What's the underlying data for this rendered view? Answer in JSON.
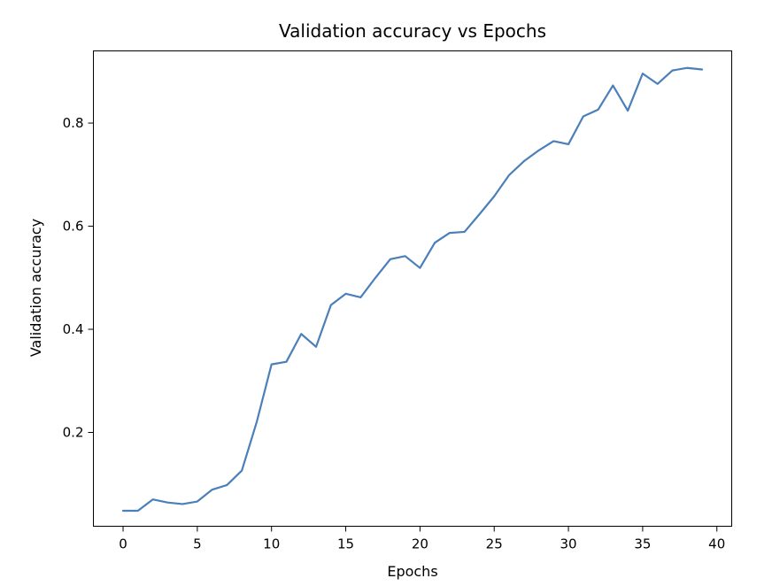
{
  "chart_data": {
    "type": "line",
    "title": "Validation accuracy vs Epochs",
    "xlabel": "Epochs",
    "ylabel": "Validation accuracy",
    "xlim": [
      -2,
      41
    ],
    "ylim": [
      0.018,
      0.94
    ],
    "xticks": [
      0,
      5,
      10,
      15,
      20,
      25,
      30,
      35,
      40
    ],
    "yticks": [
      0.2,
      0.4,
      0.6,
      0.8
    ],
    "xtick_labels": [
      "0",
      "5",
      "10",
      "15",
      "20",
      "25",
      "30",
      "35",
      "40"
    ],
    "ytick_labels": [
      "0.2",
      "0.4",
      "0.6",
      "0.8"
    ],
    "grid": false,
    "series": [
      {
        "color": "#4a7fba",
        "x": [
          0,
          1,
          2,
          3,
          4,
          5,
          6,
          7,
          8,
          9,
          10,
          11,
          12,
          13,
          14,
          15,
          16,
          17,
          18,
          19,
          20,
          21,
          22,
          23,
          24,
          25,
          26,
          27,
          28,
          29,
          30,
          31,
          32,
          33,
          34,
          35,
          36,
          37,
          38,
          39
        ],
        "y": [
          0.048,
          0.048,
          0.07,
          0.064,
          0.061,
          0.066,
          0.089,
          0.098,
          0.126,
          0.22,
          0.332,
          0.337,
          0.391,
          0.366,
          0.447,
          0.469,
          0.462,
          0.5,
          0.536,
          0.542,
          0.519,
          0.568,
          0.587,
          0.589,
          0.623,
          0.658,
          0.699,
          0.726,
          0.747,
          0.765,
          0.759,
          0.813,
          0.826,
          0.873,
          0.824,
          0.896,
          0.876,
          0.902,
          0.907,
          0.904
        ]
      }
    ]
  }
}
